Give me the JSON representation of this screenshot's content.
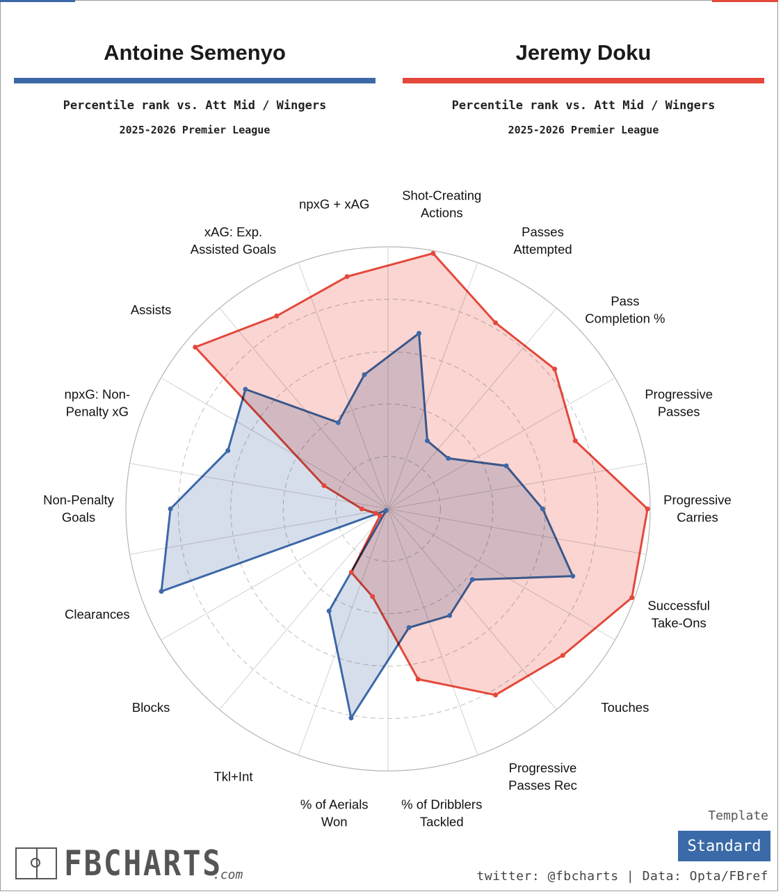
{
  "colors": {
    "player1": "#3c68a8",
    "player1_fill": "#d5dcea",
    "player2": "#e4483b",
    "player2_fill": "#f8c7c3",
    "overlap": "#6b5690",
    "template_bg": "#3a6aa7"
  },
  "header": {
    "player1": {
      "name": "Antoine Semenyo",
      "subtitle": "Percentile rank vs. Att Mid / Wingers",
      "season": "2025-2026 Premier League"
    },
    "player2": {
      "name": "Jeremy Doku",
      "subtitle": "Percentile rank vs. Att Mid / Wingers",
      "season": "2025-2026 Premier League"
    }
  },
  "footer": {
    "template_label": "Template",
    "template_value": "Standard",
    "brand_name": "FBCHARTS",
    "brand_domain": ".com",
    "credits": "twitter: @fbcharts | Data: Opta/FBref",
    "brand_icon": "pitch-icon"
  },
  "chart_data": {
    "type": "radar",
    "scale": [
      0,
      100
    ],
    "rings": [
      20,
      40,
      60,
      80
    ],
    "categories": [
      "Shot-Creating\nActions",
      "Passes\nAttempted",
      "Pass\nCompletion %",
      "Progressive\nPasses",
      "Progressive\nCarries",
      "Successful\nTake-Ons",
      "Touches",
      "Progressive\nPasses Rec",
      "% of Dribblers\nTackled",
      "% of Aerials\nWon",
      "Tkl+Int",
      "Blocks",
      "Clearances",
      "Non-Penalty\nGoals",
      "npxG: Non-\nPenalty xG",
      "Assists",
      "xAG: Exp.\nAssisted Goals",
      "npxG + xAG"
    ],
    "series": [
      {
        "name": "Antoine Semenyo",
        "values": [
          68,
          30,
          30,
          48,
          59,
          75,
          42,
          47,
          46,
          81,
          45,
          1,
          92,
          83,
          65,
          71,
          38,
          52
        ]
      },
      {
        "name": "Jeremy Doku",
        "values": [
          99,
          82,
          83,
          76,
          99,
          99,
          87,
          82,
          66,
          34,
          28,
          4,
          5,
          10,
          26,
          96,
          85,
          90
        ]
      }
    ]
  }
}
